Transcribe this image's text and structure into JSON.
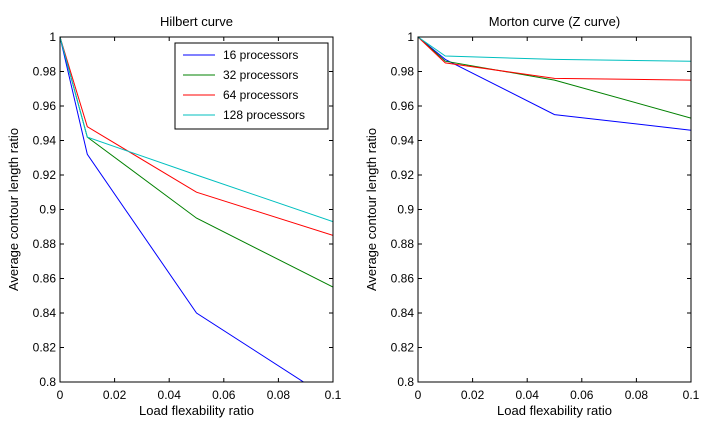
{
  "chart_data": [
    {
      "type": "line",
      "title": "Hilbert curve",
      "xlabel": "Load flexability ratio",
      "ylabel": "Average contour length ratio",
      "xlim": [
        0,
        0.1
      ],
      "ylim": [
        0.8,
        1.0
      ],
      "xticks": [
        "0",
        "0.02",
        "0.04",
        "0.06",
        "0.08",
        "0.1"
      ],
      "yticks": [
        "0.8",
        "0.82",
        "0.84",
        "0.86",
        "0.88",
        "0.9",
        "0.92",
        "0.94",
        "0.96",
        "0.98",
        "1"
      ],
      "grid": false,
      "legend": "top-right",
      "x": [
        0,
        0.01,
        0.05,
        0.1
      ],
      "series": [
        {
          "name": "16 processors",
          "color": "#0000ff",
          "values": [
            1.0,
            0.932,
            0.84,
            0.789
          ]
        },
        {
          "name": "32 processors",
          "color": "#008000",
          "values": [
            1.0,
            0.942,
            0.895,
            0.855
          ]
        },
        {
          "name": "64 processors",
          "color": "#ff0000",
          "values": [
            1.0,
            0.948,
            0.91,
            0.885
          ]
        },
        {
          "name": "128 processors",
          "color": "#00bfbf",
          "values": [
            1.0,
            0.942,
            0.92,
            0.893
          ]
        }
      ]
    },
    {
      "type": "line",
      "title": "Morton curve (Z curve)",
      "xlabel": "Load flexability ratio",
      "ylabel": "Average contour length ratio",
      "xlim": [
        0,
        0.1
      ],
      "ylim": [
        0.8,
        1.0
      ],
      "xticks": [
        "0",
        "0.02",
        "0.04",
        "0.06",
        "0.08",
        "0.1"
      ],
      "yticks": [
        "0.8",
        "0.82",
        "0.84",
        "0.86",
        "0.88",
        "0.9",
        "0.92",
        "0.94",
        "0.96",
        "0.98",
        "1"
      ],
      "grid": false,
      "legend": "none",
      "x": [
        0,
        0.01,
        0.05,
        0.1
      ],
      "series": [
        {
          "color": "#0000ff",
          "values": [
            1.0,
            0.987,
            0.955,
            0.946
          ]
        },
        {
          "color": "#008000",
          "values": [
            1.0,
            0.986,
            0.975,
            0.953
          ]
        },
        {
          "color": "#ff0000",
          "values": [
            1.0,
            0.985,
            0.976,
            0.975
          ]
        },
        {
          "color": "#00bfbf",
          "values": [
            1.0,
            0.989,
            0.987,
            0.986
          ]
        }
      ]
    }
  ]
}
